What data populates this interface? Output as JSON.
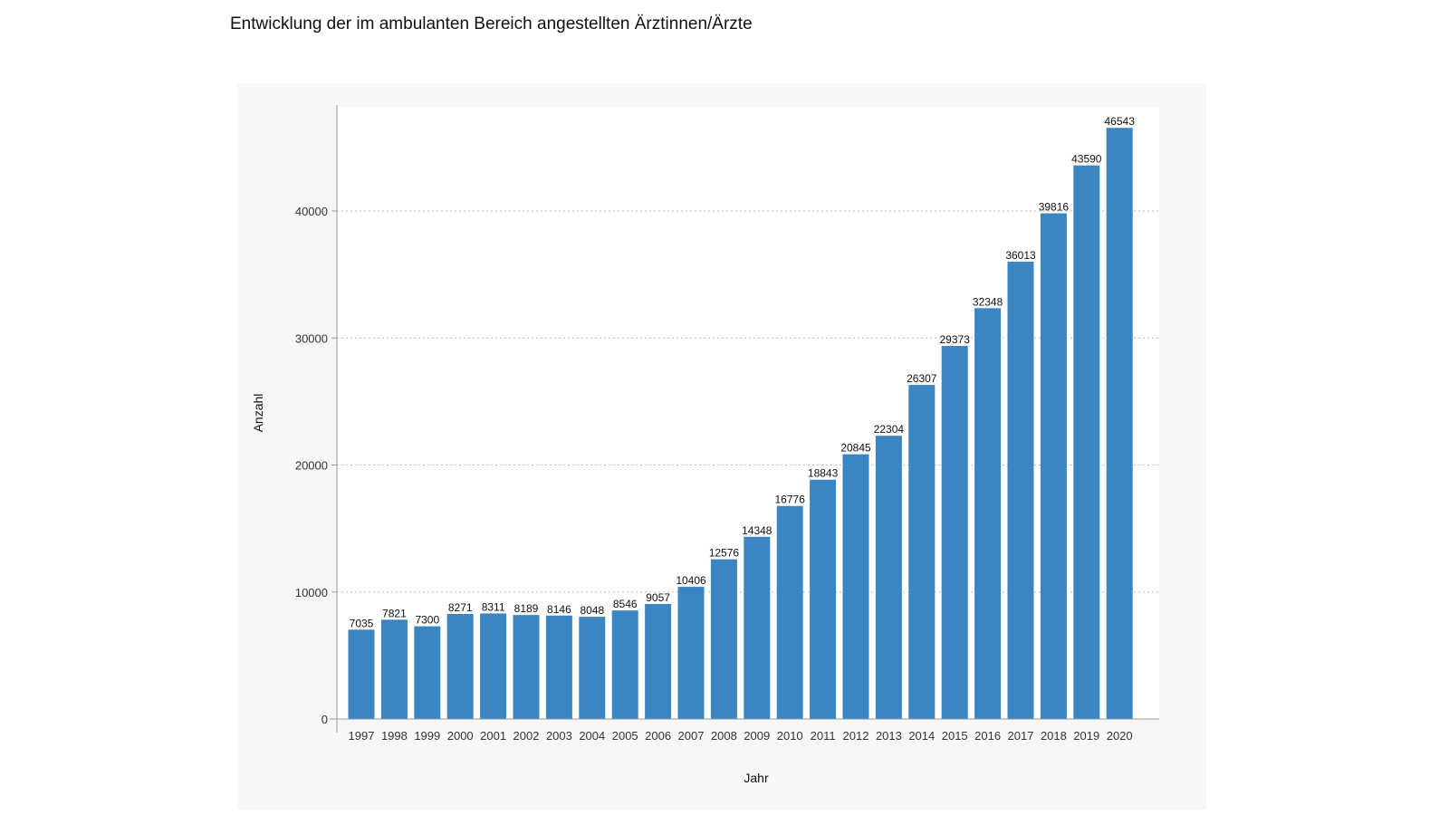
{
  "page": {
    "title": "Entwicklung der im ambulanten Bereich angestellten Ärztinnen/Ärzte"
  },
  "colors": {
    "bar": "#3a86c2",
    "panel_background": "#f7f7f7",
    "plot_background": "#ffffff",
    "grid": "#bdbdbd"
  },
  "chart_data": {
    "type": "bar",
    "title": "",
    "xlabel": "Jahr",
    "ylabel": "Anzahl",
    "categories": [
      "1997",
      "1998",
      "1999",
      "2000",
      "2001",
      "2002",
      "2003",
      "2004",
      "2005",
      "2006",
      "2007",
      "2008",
      "2009",
      "2010",
      "2011",
      "2012",
      "2013",
      "2014",
      "2015",
      "2016",
      "2017",
      "2018",
      "2019",
      "2020"
    ],
    "values": [
      7035,
      7821,
      7300,
      8271,
      8311,
      8189,
      8146,
      8048,
      8546,
      9057,
      10406,
      12576,
      14348,
      16776,
      18843,
      20845,
      22304,
      26307,
      29373,
      32348,
      36013,
      39816,
      43590,
      46543
    ],
    "y_ticks": [
      "0",
      "10000",
      "20000",
      "30000",
      "40000"
    ],
    "ylim": [
      0,
      48200
    ],
    "grid": "horizontal dotted",
    "legend": "none"
  }
}
